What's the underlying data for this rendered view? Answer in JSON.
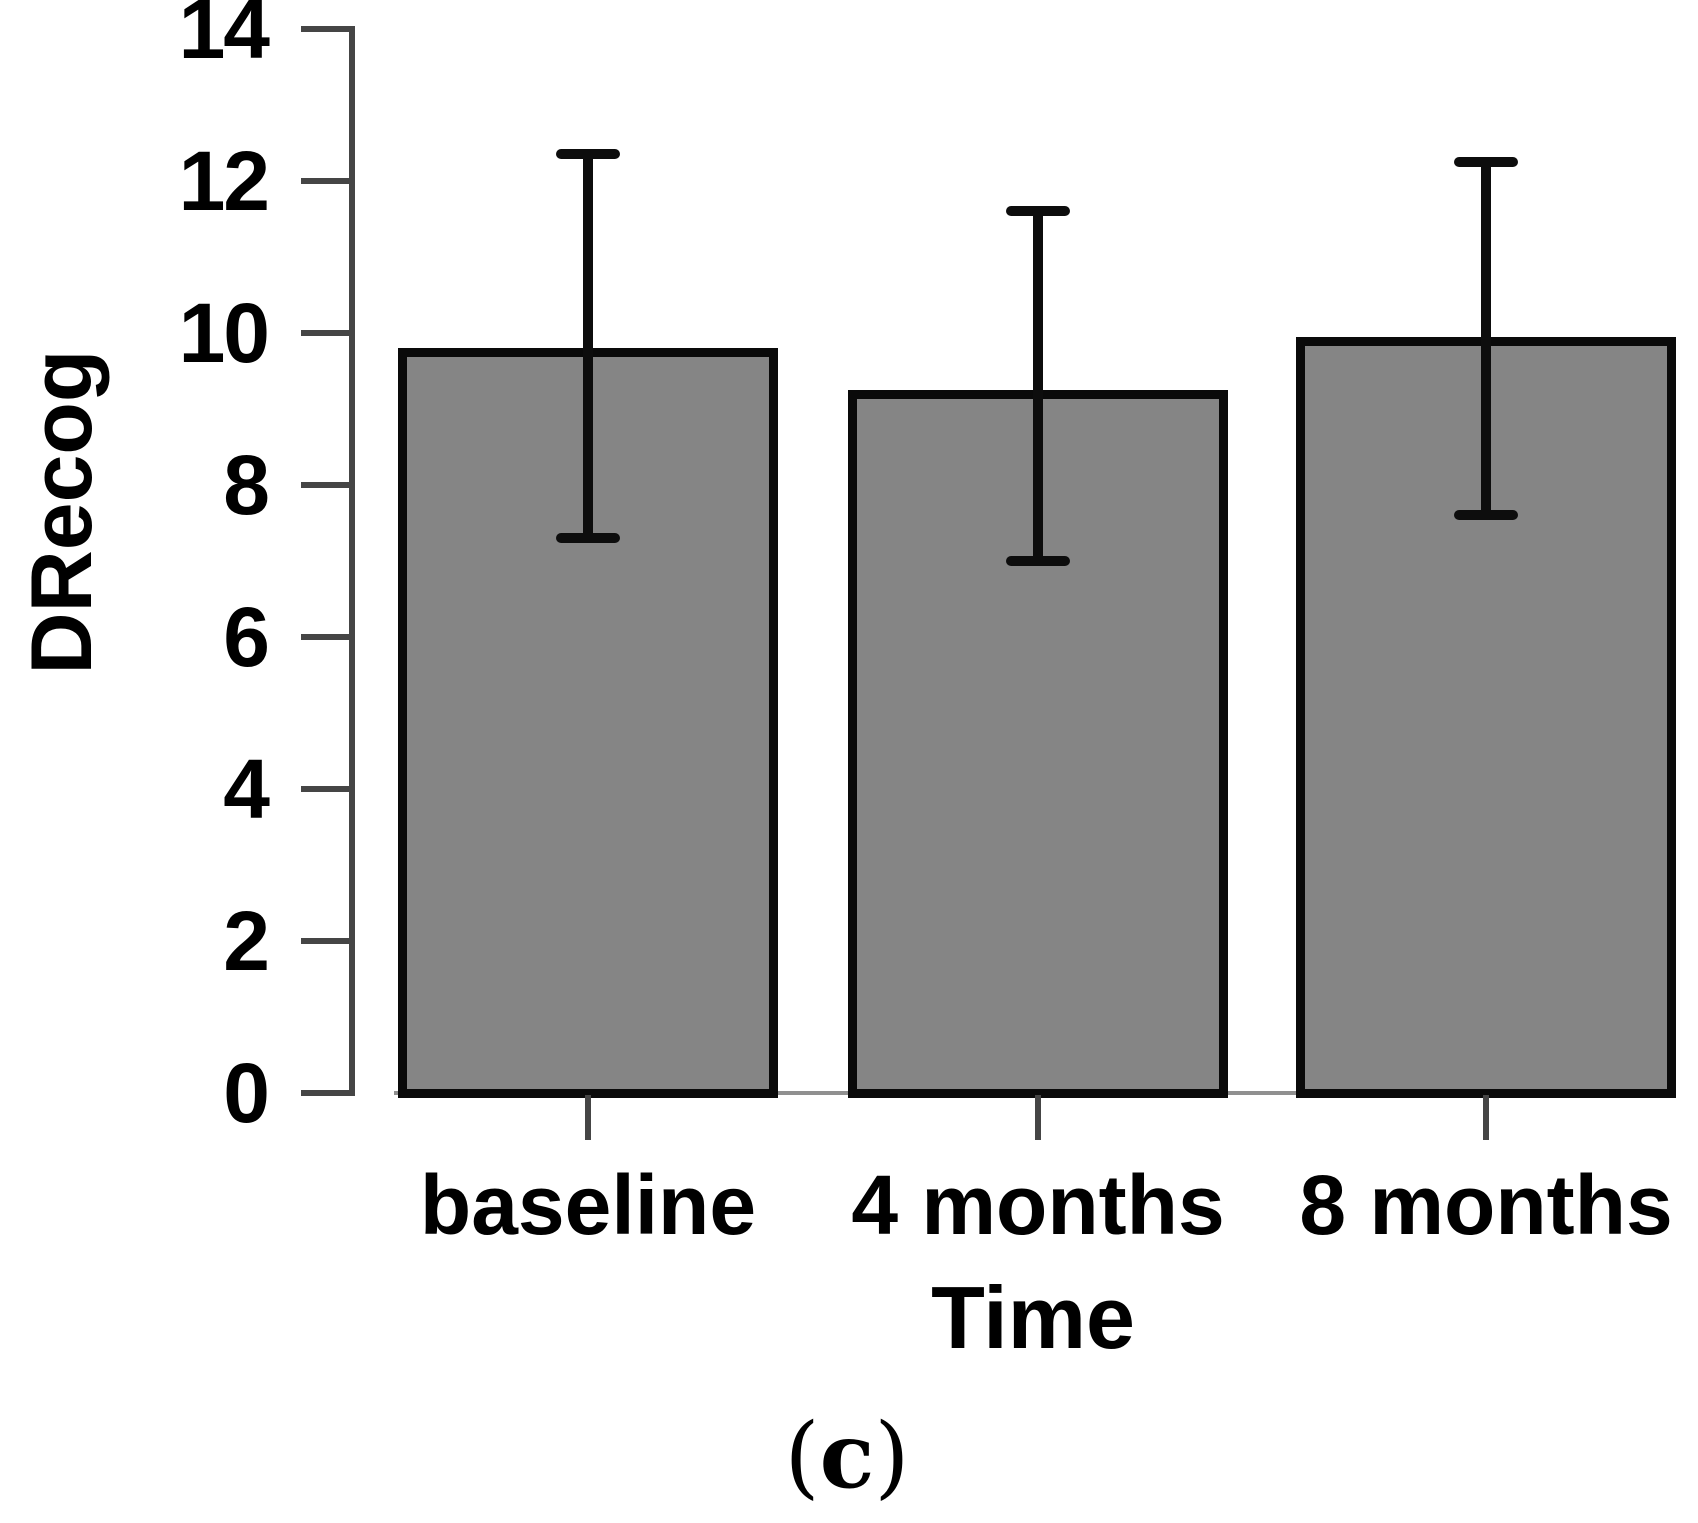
{
  "figure": {
    "caption": {
      "open": "(",
      "letter": "c",
      "close": ")"
    }
  },
  "chart_data": {
    "type": "bar",
    "title": "",
    "xlabel": "Time",
    "ylabel": "DRecog",
    "caption": "(c)",
    "categories": [
      "baseline",
      "4 months",
      "8 months"
    ],
    "values": [
      9.8,
      9.25,
      9.95
    ],
    "error_upper": [
      12.35,
      11.6,
      12.25
    ],
    "error_lower": [
      7.3,
      7.0,
      7.6
    ],
    "ylim": [
      0,
      14
    ],
    "yticks": [
      0,
      2,
      4,
      6,
      8,
      10,
      12,
      14
    ],
    "grid": false,
    "legend": false,
    "bar_fill": "#858585",
    "bar_border": "#0a0a0a",
    "error_color": "#0d0d0d",
    "axis_color": "#454545",
    "baseline_color": "#909090",
    "text_color": "#000000"
  }
}
